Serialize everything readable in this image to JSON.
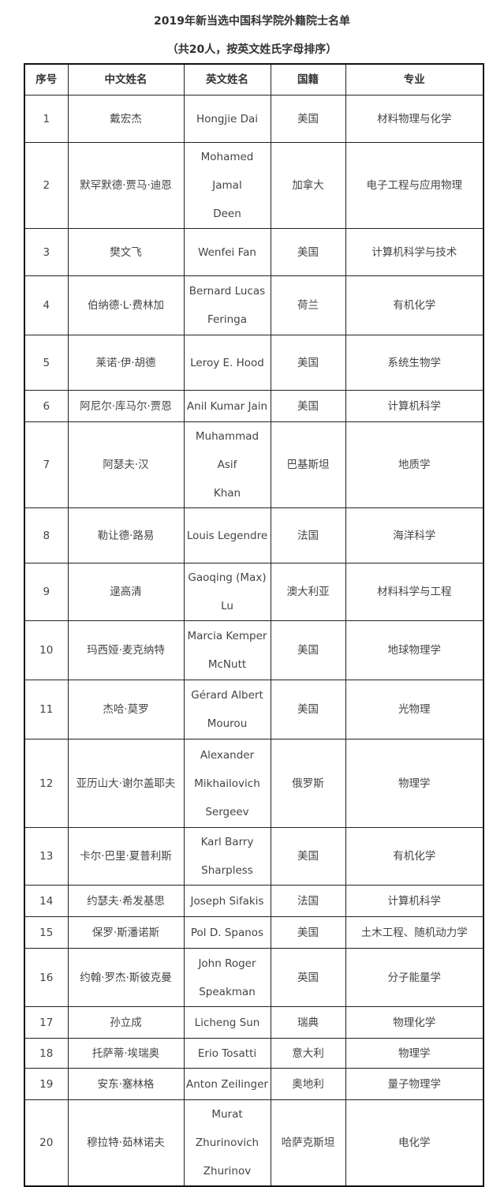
{
  "title": "2019年新当选中国科学院外籍院士名单",
  "subtitle": "（共20人，按英文姓氏字母排序）",
  "headers": [
    "序号",
    "中文姓名",
    "英文姓名",
    "国籍",
    "专业"
  ],
  "rows": [
    {
      "no": "1",
      "cn": "戴宏杰",
      "en": [
        "Hongjie Dai"
      ],
      "nat": "美国",
      "field": "材料物理与化学"
    },
    {
      "no": "2",
      "cn": "默罕默德·贾马·迪恩",
      "en": [
        "Mohamed Jamal",
        "Deen"
      ],
      "nat": "加拿大",
      "field": "电子工程与应用物理"
    },
    {
      "no": "3",
      "cn": "樊文飞",
      "en": [
        "Wenfei Fan"
      ],
      "nat": "美国",
      "field": "计算机科学与技术"
    },
    {
      "no": "4",
      "cn": "伯纳德·L·费林加",
      "en": [
        "Bernard Lucas",
        "Feringa"
      ],
      "nat": "荷兰",
      "field": "有机化学"
    },
    {
      "no": "5",
      "cn": "莱诺·伊·胡德",
      "en": [
        "Leroy E. Hood"
      ],
      "nat": "美国",
      "field": "系统生物学"
    },
    {
      "no": "6",
      "cn": "阿尼尔·库马尔·贾恩",
      "en": [
        "Anil Kumar Jain"
      ],
      "nat": "美国",
      "field": "计算机科学"
    },
    {
      "no": "7",
      "cn": "阿瑟夫·汉",
      "en": [
        "Muhammad Asif",
        "Khan"
      ],
      "nat": "巴基斯坦",
      "field": "地质学"
    },
    {
      "no": "8",
      "cn": "勒让德·路易",
      "en": [
        "Louis Legendre"
      ],
      "nat": "法国",
      "field": "海洋科学"
    },
    {
      "no": "9",
      "cn": "逯高清",
      "en": [
        "Gaoqing (Max) Lu"
      ],
      "nat": "澳大利亚",
      "field": "材料科学与工程"
    },
    {
      "no": "10",
      "cn": "玛西娅·麦克纳特",
      "en": [
        "Marcia Kemper",
        "McNutt"
      ],
      "nat": "美国",
      "field": "地球物理学"
    },
    {
      "no": "11",
      "cn": "杰哈·莫罗",
      "en": [
        "Gérard Albert",
        "Mourou"
      ],
      "nat": "美国",
      "field": "光物理"
    },
    {
      "no": "12",
      "cn": "亚历山大·谢尔盖耶夫",
      "en": [
        "Alexander",
        "Mikhailovich",
        "Sergeev"
      ],
      "nat": "俄罗斯",
      "field": "物理学"
    },
    {
      "no": "13",
      "cn": "卡尔·巴里·夏普利斯",
      "en": [
        "Karl Barry",
        "Sharpless"
      ],
      "nat": "美国",
      "field": "有机化学"
    },
    {
      "no": "14",
      "cn": "约瑟夫·希发基思",
      "en": [
        "Joseph Sifakis"
      ],
      "nat": "法国",
      "field": "计算机科学"
    },
    {
      "no": "15",
      "cn": "保罗·斯潘诺斯",
      "en": [
        "Pol D. Spanos"
      ],
      "nat": "美国",
      "field": "土木工程、随机动力学"
    },
    {
      "no": "16",
      "cn": "约翰·罗杰·斯彼克曼",
      "en": [
        "John Roger",
        "Speakman"
      ],
      "nat": "英国",
      "field": "分子能量学"
    },
    {
      "no": "17",
      "cn": "孙立成",
      "en": [
        "Licheng Sun"
      ],
      "nat": "瑞典",
      "field": "物理化学"
    },
    {
      "no": "18",
      "cn": "托萨蒂·埃瑞奥",
      "en": [
        "Erio Tosatti"
      ],
      "nat": "意大利",
      "field": "物理学"
    },
    {
      "no": "19",
      "cn": "安东·塞林格",
      "en": [
        "Anton Zeilinger"
      ],
      "nat": "奥地利",
      "field": "量子物理学"
    },
    {
      "no": "20",
      "cn": "穆拉特·茹林诺夫",
      "en": [
        "Murat Zhurinovich",
        "Zhurinov"
      ],
      "nat": "哈萨克斯坦",
      "field": "电化学"
    }
  ]
}
